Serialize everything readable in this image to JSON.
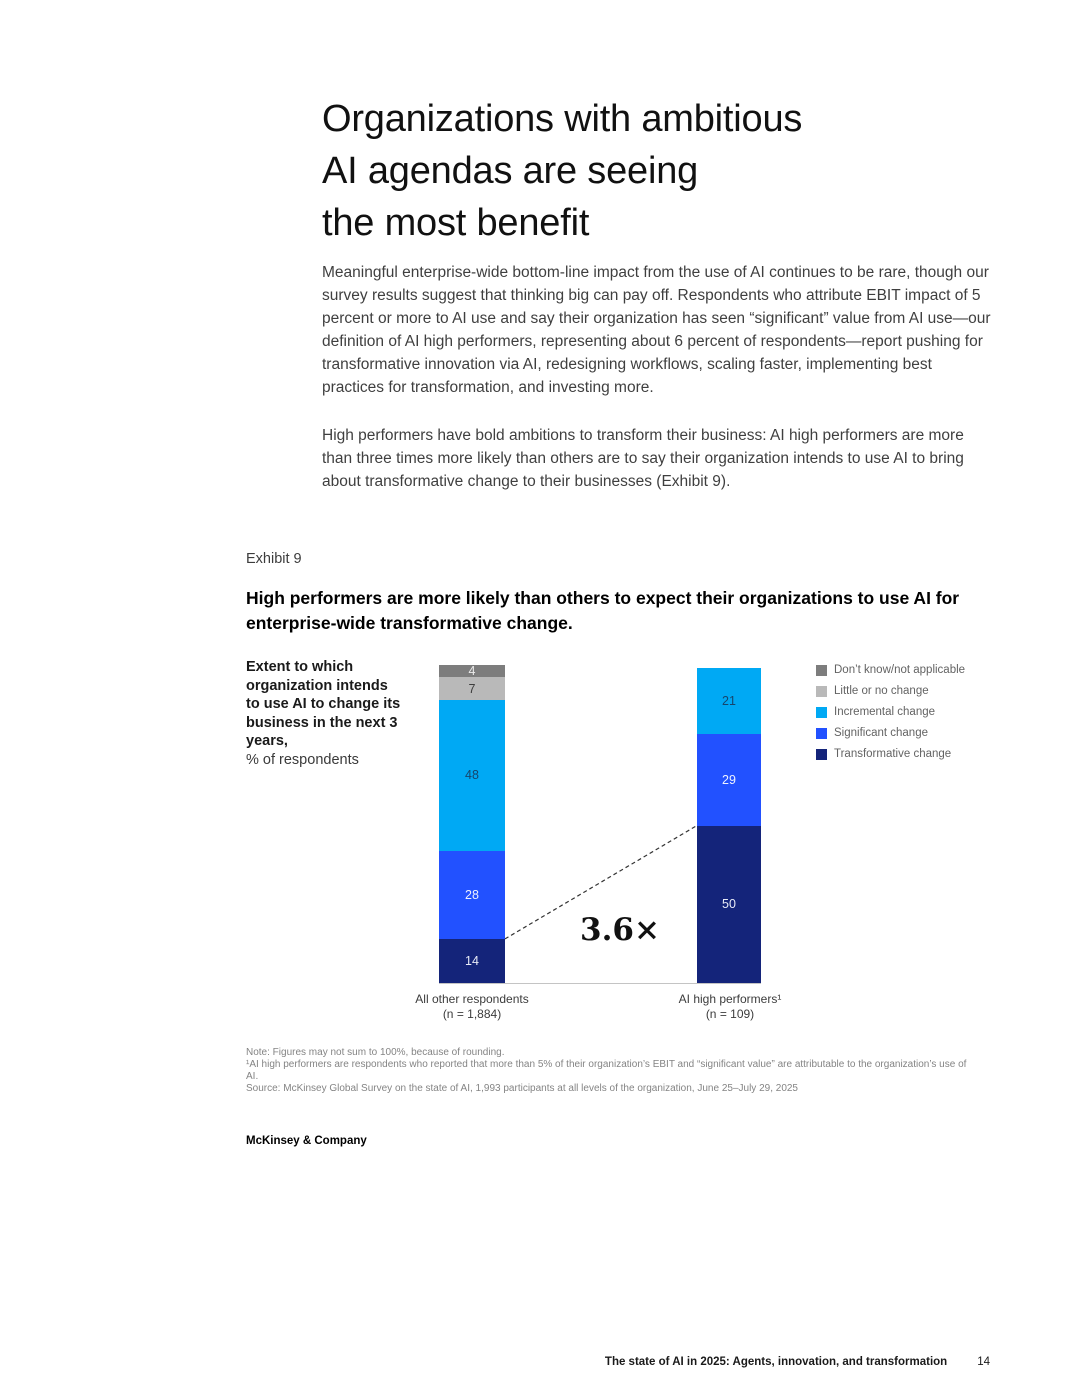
{
  "page": {
    "title": "Organizations with ambitious\nAI agendas are seeing\nthe most benefit",
    "paragraph_1": "Meaningful enterprise-wide bottom-line impact from the use of AI continues to be rare, though our survey results suggest that thinking big can pay off. Respondents who attribute EBIT impact of 5 percent or more to AI use and say their organization has seen “significant” value from AI use—our definition of AI high performers, representing about 6 percent of respondents—report pushing for transformative innovation via AI, redesigning workflows, scaling faster, implementing best practices for transformation, and investing more.",
    "paragraph_2": "High performers have bold ambitions to transform their business: AI high performers are more than three times more likely than others are to say their organization intends to use AI to bring about transformative change to their businesses (Exhibit 9).",
    "exhibit_label": "Exhibit 9",
    "exhibit_title": "High performers are more likely than others to expect their organizations to use AI for enterprise-wide transformative change.",
    "footnotes": [
      "Note: Figures may not sum to 100%, because of rounding.",
      "¹AI high performers are respondents who reported that more than 5% of their organization’s EBIT and “significant value” are attributable to the organization’s use of AI.",
      "Source: McKinsey Global Survey on the state of AI, 1,993 participants at all levels of the organization, June 25–July 29, 2025"
    ],
    "brand": "McKinsey & Company",
    "footer": {
      "text": "The state of AI in 2025: Agents, innovation, and transformation",
      "page_number": "14"
    }
  },
  "chart_data": {
    "type": "bar",
    "stacked": true,
    "title": "Extent to which organization intends to use AI to change its business in the next 3 years,",
    "unit_label": "% of respondents",
    "categories": [
      "All other respondents\n(n = 1,884)",
      "AI high performers¹\n(n = 109)"
    ],
    "series": [
      {
        "name": "Don’t know/not applicable",
        "color": "#7d7d7d",
        "label_color": "#ececec",
        "values": [
          4,
          null
        ]
      },
      {
        "name": "Little or no change",
        "color": "#b9b9b9",
        "label_color": "#3d3d3d",
        "values": [
          7,
          null
        ]
      },
      {
        "name": "Incremental change",
        "color": "#00a9f4",
        "label_color": "#17456b",
        "values": [
          48,
          21
        ]
      },
      {
        "name": "Significant change",
        "color": "#2251ff",
        "label_color": "#eef2ff",
        "values": [
          28,
          29
        ]
      },
      {
        "name": "Transformative change",
        "color": "#14247a",
        "label_color": "#e8ebf7",
        "values": [
          14,
          50
        ]
      }
    ],
    "annotation": "3.6×",
    "ylim": [
      0,
      100
    ],
    "legend_position": "right",
    "grid": false
  }
}
